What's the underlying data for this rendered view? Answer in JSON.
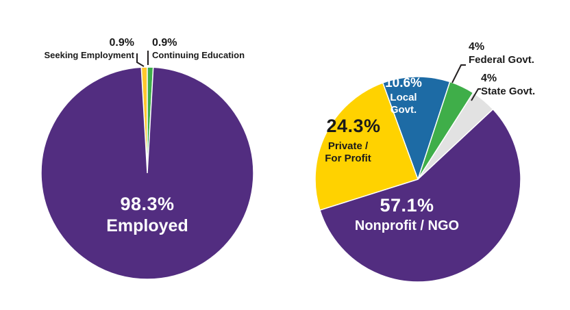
{
  "chart_data": [
    {
      "type": "pie",
      "position": "left",
      "start_angle": -3.24,
      "slices": [
        {
          "label": "Seeking Employment",
          "value": 0.9,
          "pct_text": "0.9%",
          "color": "#ffc72c"
        },
        {
          "label": "Continuing Education",
          "value": 0.9,
          "pct_text": "0.9%",
          "color": "#3fae49"
        },
        {
          "label": "Employed",
          "value": 98.3,
          "pct_text": "98.3%",
          "color": "#522d80"
        }
      ]
    },
    {
      "type": "pie",
      "position": "right",
      "start_angle": -20,
      "slices": [
        {
          "label": "Local Govt.",
          "value": 10.6,
          "pct_text": "10.6%",
          "color": "#1d6ba5",
          "line1": "Local",
          "line2": "Govt."
        },
        {
          "label": "Federal Govt.",
          "value": 4,
          "pct_text": "4%",
          "color": "#3fae49"
        },
        {
          "label": "State Govt.",
          "value": 4,
          "pct_text": "4%",
          "color": "#e2e2e2"
        },
        {
          "label": "Nonprofit / NGO",
          "value": 57.1,
          "pct_text": "57.1%",
          "color": "#522d80"
        },
        {
          "label": "Private / For Profit",
          "value": 24.3,
          "pct_text": "24.3%",
          "color": "#ffd200",
          "line1": "Private /",
          "line2": "For Profit"
        }
      ]
    }
  ],
  "colors": {
    "purple": "#522d80",
    "yellow": "#ffd200",
    "gold": "#ffc72c",
    "green": "#3fae49",
    "blue": "#1d6ba5",
    "gray": "#e2e2e2",
    "text_dark": "#1a1a1a",
    "text_light": "#ffffff"
  }
}
